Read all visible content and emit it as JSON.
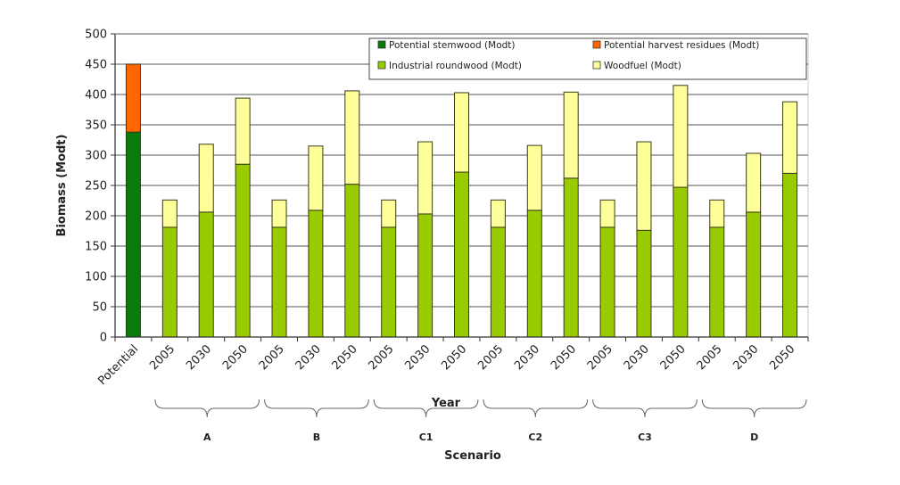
{
  "chart_data": {
    "type": "bar",
    "stacked": true,
    "title": "",
    "xlabel": "Year",
    "xlabel2": "Scenario",
    "ylabel": "Biomass (Modt)",
    "ylim": [
      0,
      500
    ],
    "yticks": [
      0,
      50,
      100,
      150,
      200,
      250,
      300,
      350,
      400,
      450,
      500
    ],
    "grid": true,
    "legend_position": "top-right",
    "categories": [
      "Potential",
      "2005",
      "2030",
      "2050",
      "2005",
      "2030",
      "2050",
      "2005",
      "2030",
      "2050",
      "2005",
      "2030",
      "2050",
      "2005",
      "2030",
      "2050",
      "2005",
      "2030",
      "2050"
    ],
    "groups": [
      {
        "label": "A",
        "from": 1,
        "to": 3
      },
      {
        "label": "B",
        "from": 4,
        "to": 6
      },
      {
        "label": "C1",
        "from": 7,
        "to": 9
      },
      {
        "label": "C2",
        "from": 10,
        "to": 12
      },
      {
        "label": "C3",
        "from": 13,
        "to": 15
      },
      {
        "label": "D",
        "from": 16,
        "to": 18
      }
    ],
    "series": [
      {
        "name": "Potential stemwood (Modt)",
        "color": "#0a7a0a",
        "values": [
          338,
          0,
          0,
          0,
          0,
          0,
          0,
          0,
          0,
          0,
          0,
          0,
          0,
          0,
          0,
          0,
          0,
          0,
          0
        ]
      },
      {
        "name": "Potential harvest residues (Modt)",
        "color": "#ff6600",
        "values": [
          112,
          0,
          0,
          0,
          0,
          0,
          0,
          0,
          0,
          0,
          0,
          0,
          0,
          0,
          0,
          0,
          0,
          0,
          0
        ]
      },
      {
        "name": "Industrial roundwood (Modt)",
        "color": "#99cc00",
        "values": [
          0,
          181,
          206,
          285,
          181,
          209,
          252,
          181,
          203,
          272,
          181,
          209,
          262,
          181,
          176,
          247,
          181,
          206,
          270
        ]
      },
      {
        "name": "Woodfuel (Modt)",
        "color": "#ffff99",
        "values": [
          0,
          45,
          112,
          109,
          45,
          106,
          154,
          45,
          119,
          131,
          45,
          107,
          142,
          45,
          146,
          168,
          45,
          97,
          118
        ]
      }
    ],
    "legend_order": [
      0,
      1,
      2,
      3
    ]
  }
}
